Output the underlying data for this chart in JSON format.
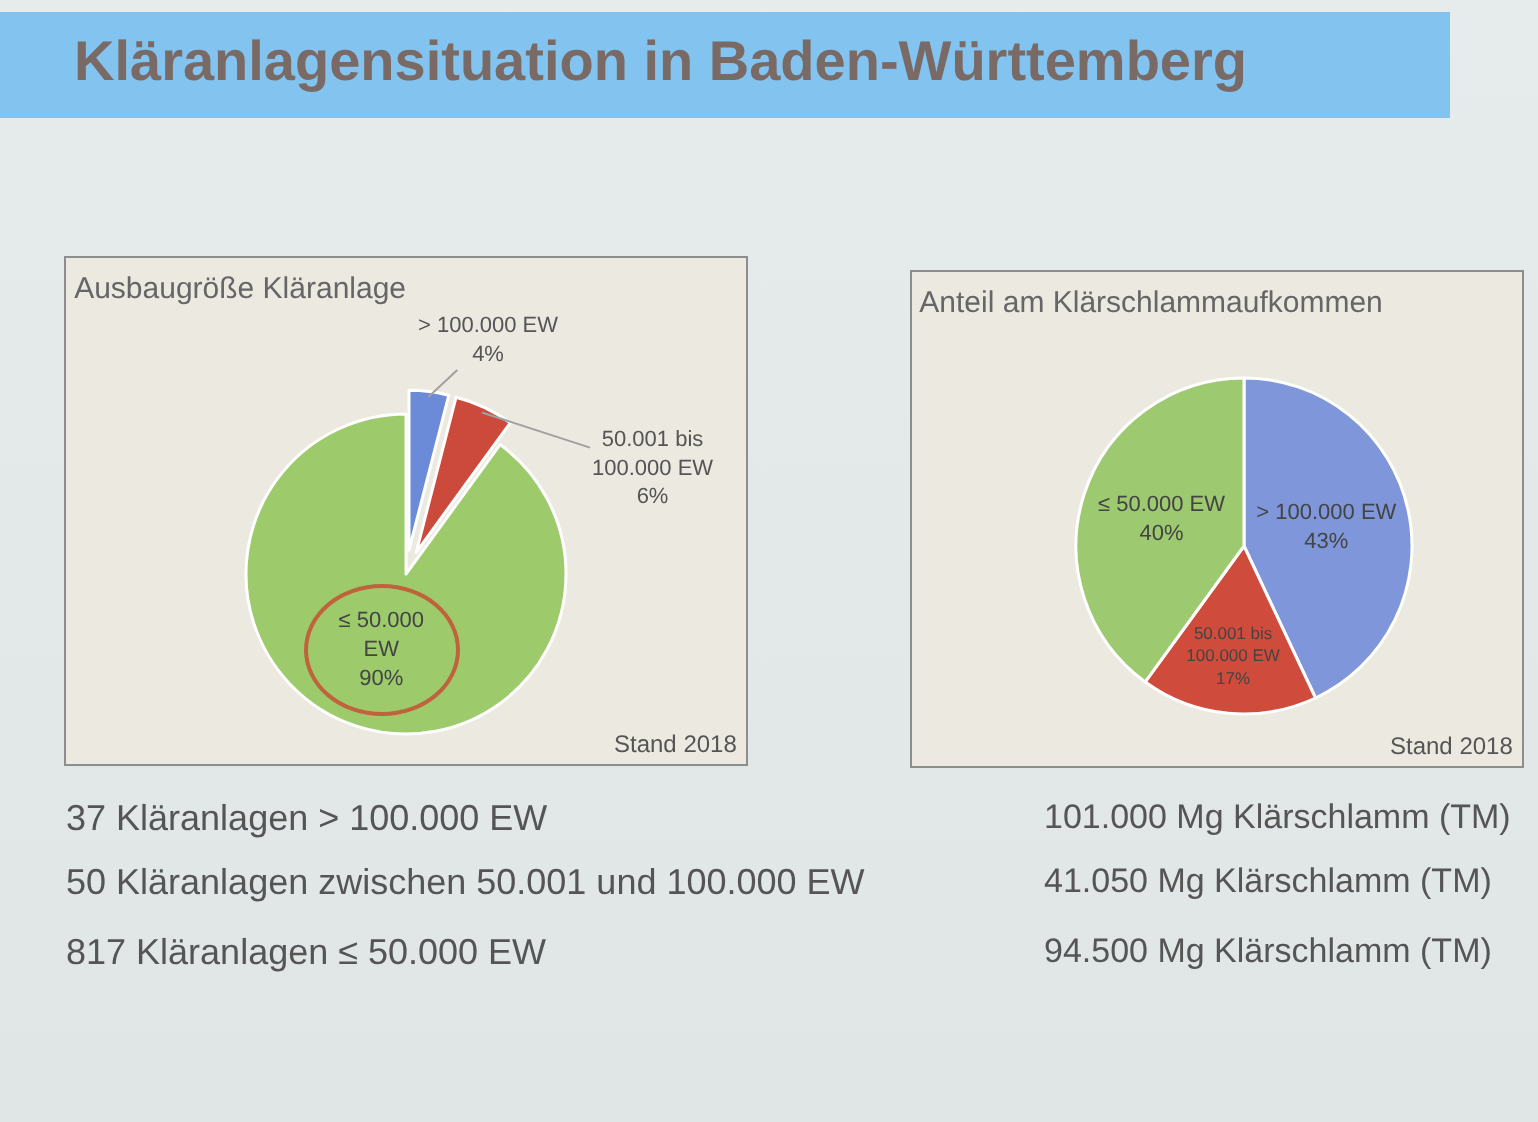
{
  "chart_data": [
    {
      "type": "pie",
      "title": "Kläranlagensituation in Baden-Württemberg",
      "subtitle": "Ausbaugröße Kläranlage",
      "categories": [
        "> 100.000 EW",
        "50.001 bis 100.000 EW",
        "≤ 50.000 EW"
      ],
      "values": [
        4,
        6,
        90
      ],
      "value_labels": [
        "4%",
        "6%",
        "90%"
      ],
      "colors": [
        "#6b8ad8",
        "#cc4a3c",
        "#9dcb6c"
      ],
      "annotations": [
        "Stand 2018",
        "37 Kläranlagen > 100.000 EW",
        "50 Kläranlagen zwischen 50.001 und 100.000 EW",
        "817 Kläranlagen ≤ 50.000 EW"
      ]
    },
    {
      "type": "pie",
      "title": "Anteil am Klärschlammaufkommen",
      "categories": [
        "> 100.000 EW",
        "50.001 bis 100.000 EW",
        "≤ 50.000 EW"
      ],
      "values": [
        43,
        17,
        40
      ],
      "value_labels": [
        "43%",
        "17%",
        "40%"
      ],
      "colors": [
        "#7f97da",
        "#cf4b3b",
        "#9dc970"
      ],
      "annotations": [
        "Stand 2018",
        "101.000 Mg Klärschlamm (TM)",
        "41.050 Mg Klärschlamm (TM)",
        "94.500 Mg Klärschlamm (TM)"
      ]
    }
  ]
}
